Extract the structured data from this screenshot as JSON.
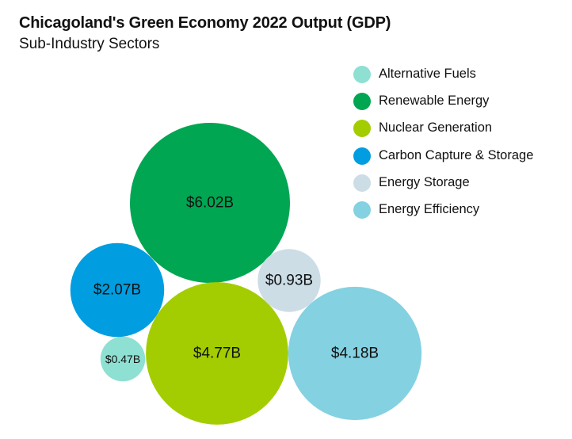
{
  "chart_data": {
    "type": "bubble",
    "title": "Chicagoland's Green Economy 2022 Output (GDP)",
    "subtitle": "Sub-Industry Sectors",
    "units": "billions USD",
    "series": [
      {
        "name": "Alternative Fuels",
        "value": 0.47,
        "label": "$0.47B",
        "color": "#8ee0d2"
      },
      {
        "name": "Renewable Energy",
        "value": 6.02,
        "label": "$6.02B",
        "color": "#00a652"
      },
      {
        "name": "Nuclear Generation",
        "value": 4.77,
        "label": "$4.77B",
        "color": "#a3cd00"
      },
      {
        "name": "Carbon Capture & Storage",
        "value": 2.07,
        "label": "$2.07B",
        "color": "#009ee0"
      },
      {
        "name": "Energy Storage",
        "value": 0.93,
        "label": "$0.93B",
        "color": "#ccdde6"
      },
      {
        "name": "Energy Efficiency",
        "value": 4.18,
        "label": "$4.18B",
        "color": "#84d1e2"
      }
    ],
    "legend_position": "top-right"
  }
}
